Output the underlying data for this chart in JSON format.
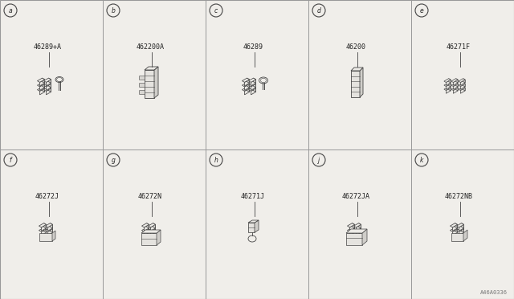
{
  "background_color": "#f0eeea",
  "cell_bg": "#f0eeea",
  "border_color": "#999999",
  "grid_color": "#999999",
  "text_color": "#222222",
  "line_color": "#444444",
  "figsize": [
    6.4,
    3.72
  ],
  "dpi": 100,
  "grid_rows": 2,
  "grid_cols": 5,
  "cells": [
    {
      "id": "a",
      "part": "46289+A",
      "row": 0,
      "col": 0
    },
    {
      "id": "b",
      "part": "462200A",
      "row": 0,
      "col": 1
    },
    {
      "id": "c",
      "part": "46289",
      "row": 0,
      "col": 2
    },
    {
      "id": "d",
      "part": "46200",
      "row": 0,
      "col": 3
    },
    {
      "id": "e",
      "part": "46271F",
      "row": 0,
      "col": 4
    },
    {
      "id": "f",
      "part": "46272J",
      "row": 1,
      "col": 0
    },
    {
      "id": "g",
      "part": "46272N",
      "row": 1,
      "col": 1
    },
    {
      "id": "h",
      "part": "46271J",
      "row": 1,
      "col": 2
    },
    {
      "id": "j",
      "part": "46272JA",
      "row": 1,
      "col": 3
    },
    {
      "id": "k",
      "part": "46272NB",
      "row": 1,
      "col": 4
    }
  ],
  "footer_text": "A46A0336"
}
